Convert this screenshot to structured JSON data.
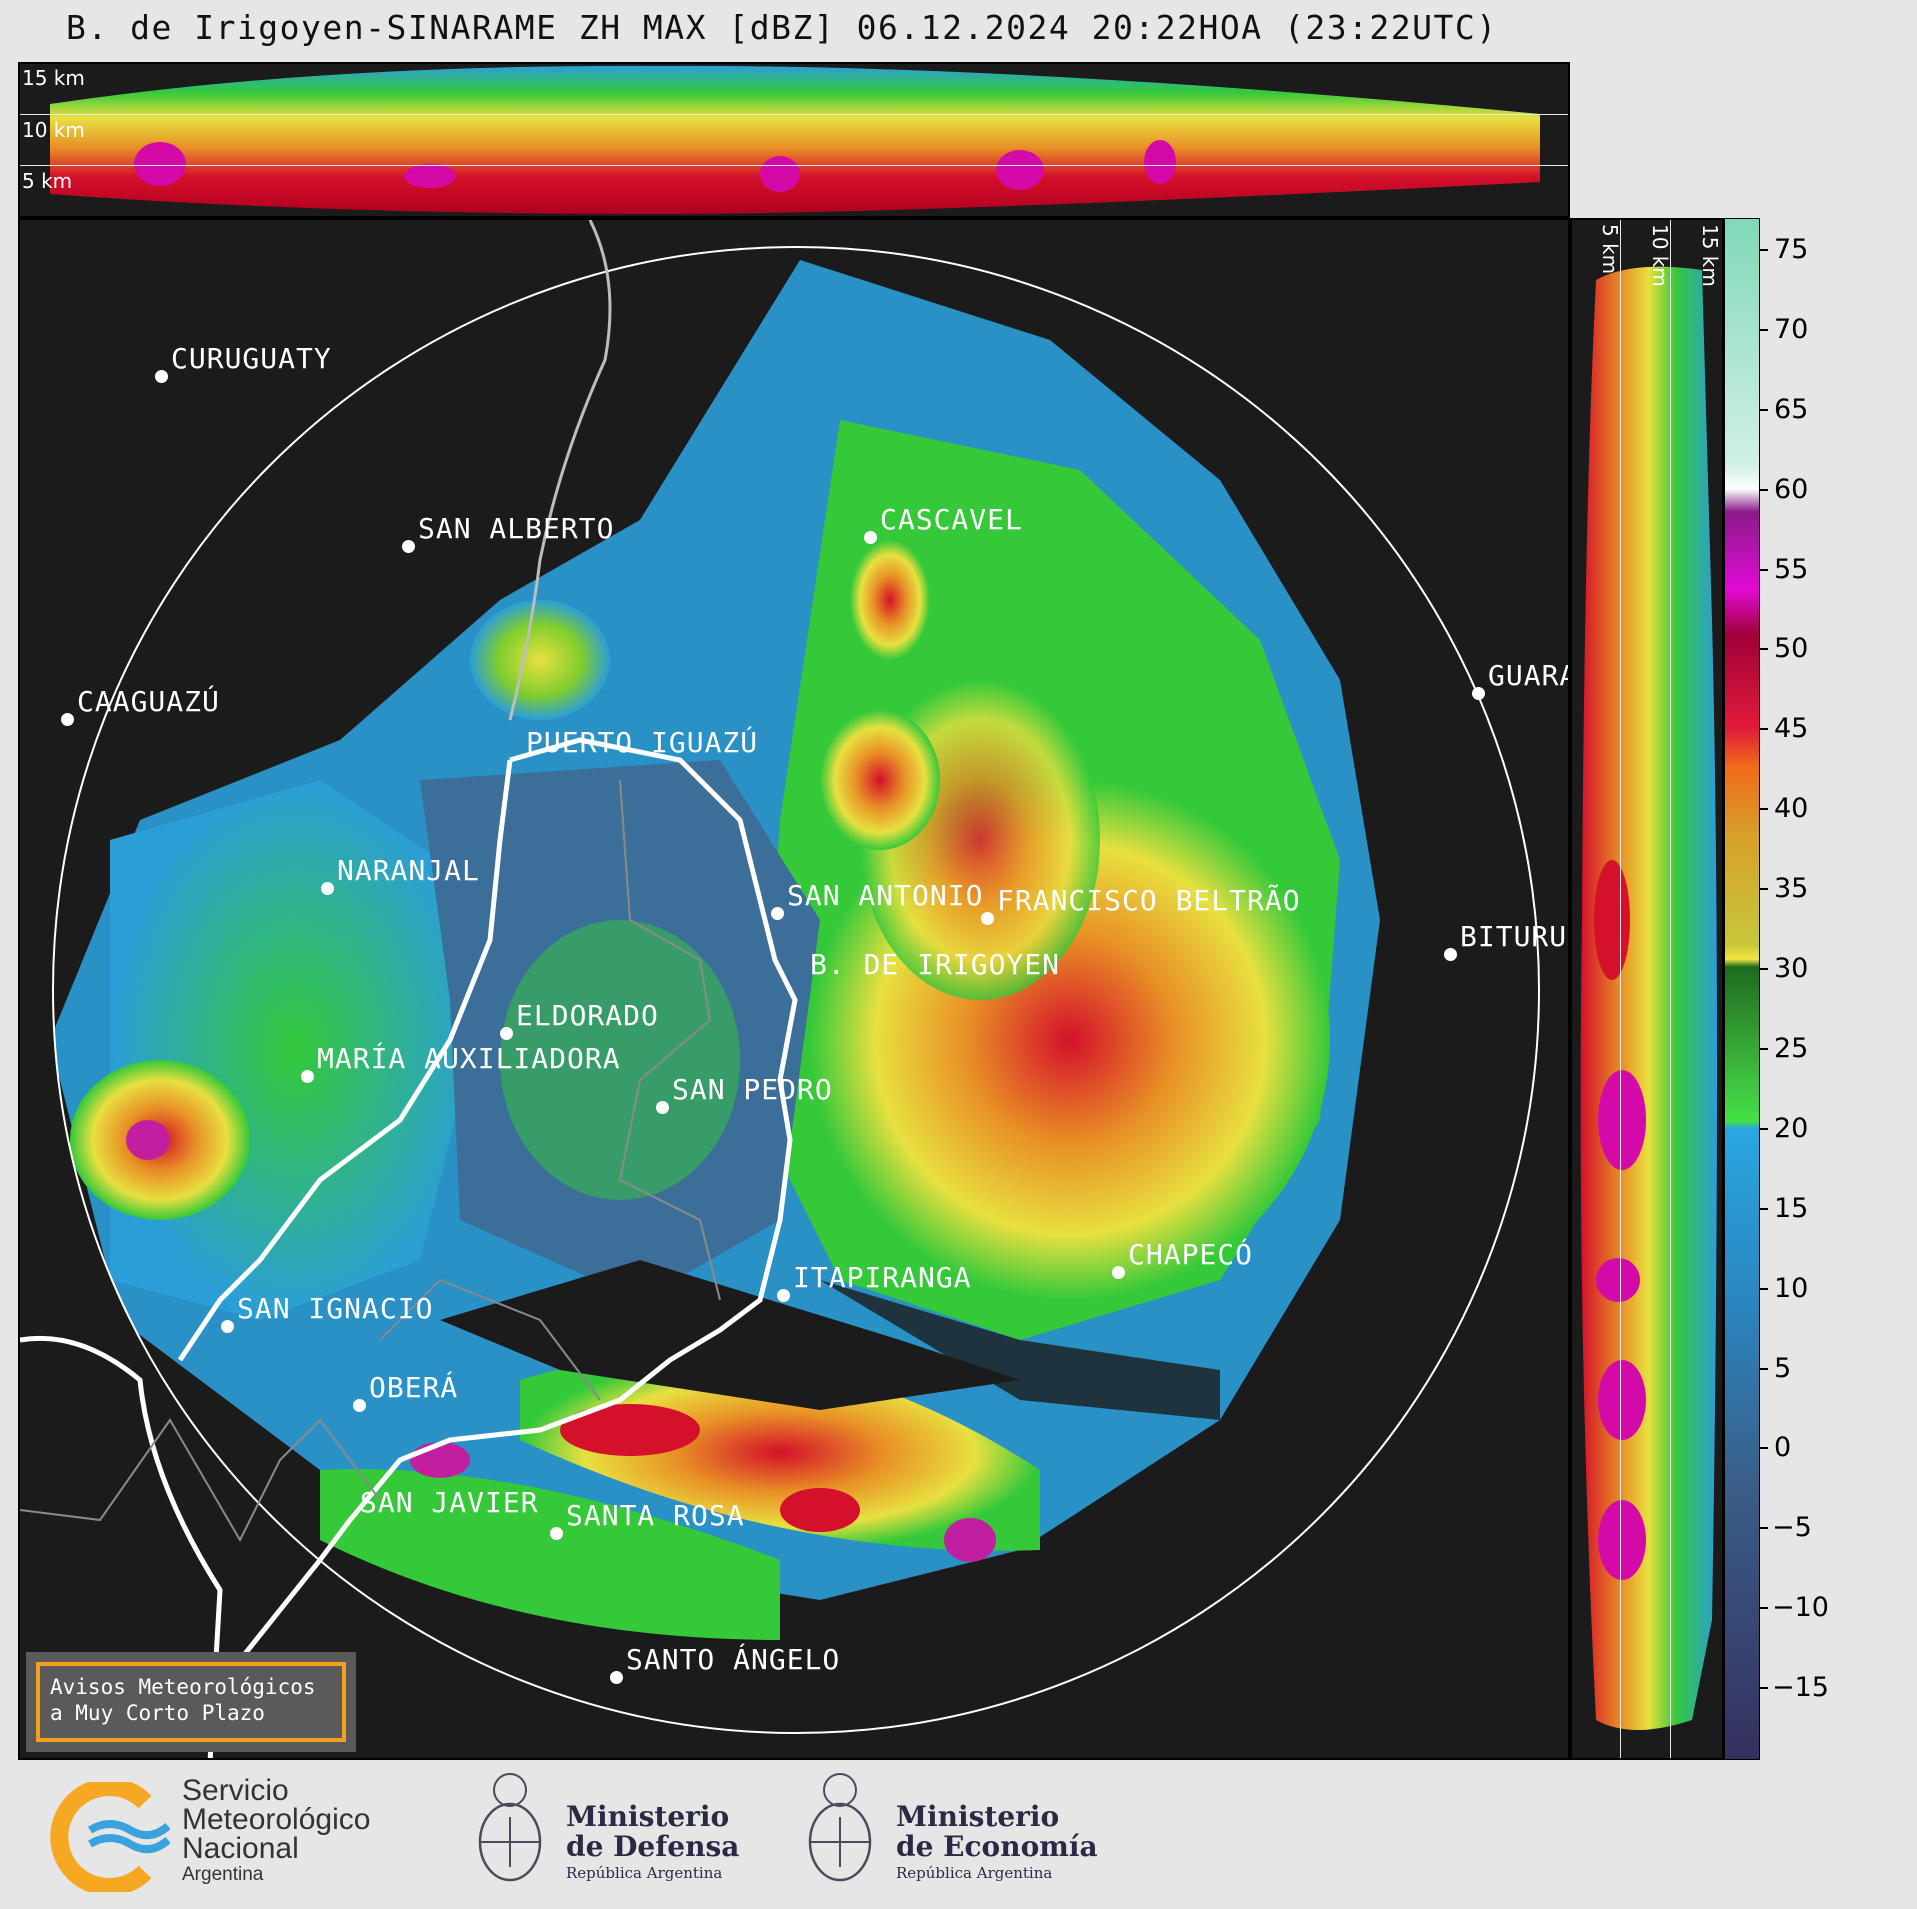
{
  "title": "B. de Irigoyen-SINARAME ZH MAX [dBZ] 06.12.2024 20:22HOA (23:22UTC)",
  "top_panel": {
    "height_labels": [
      "15 km",
      "10 km",
      "5 km"
    ]
  },
  "right_panel": {
    "height_labels": [
      "5 km",
      "10 km",
      "15 km"
    ]
  },
  "colorbar": {
    "unit": "dBZ",
    "ticks": [
      "75",
      "70",
      "65",
      "60",
      "55",
      "50",
      "45",
      "40",
      "35",
      "30",
      "25",
      "20",
      "15",
      "10",
      "5",
      "0",
      "−5",
      "−10",
      "−15"
    ],
    "range": [
      -19.5,
      77
    ],
    "colors": [
      {
        "from": 60,
        "to": 77,
        "hex": "#9bdcc3"
      },
      {
        "from": 58,
        "to": 60,
        "hex": "#ffffff"
      },
      {
        "from": 50,
        "to": 58,
        "hex": "#c21fa0"
      },
      {
        "from": 42,
        "to": 50,
        "hex": "#d4102a"
      },
      {
        "from": 35,
        "to": 42,
        "hex": "#e89026"
      },
      {
        "from": 30,
        "to": 35,
        "hex": "#e8e040"
      },
      {
        "from": 20,
        "to": 30,
        "hex": "#2f9e2f"
      },
      {
        "from": 10,
        "to": 20,
        "hex": "#2b9ed8"
      },
      {
        "from": -5,
        "to": 10,
        "hex": "#3b6e99"
      },
      {
        "from": -19.5,
        "to": -5,
        "hex": "#3a3a6a"
      }
    ]
  },
  "cities": [
    {
      "name": "CURUGUATY"
    },
    {
      "name": "SAN ALBERTO"
    },
    {
      "name": "CASCAVEL"
    },
    {
      "name": "CAAGUAZÚ"
    },
    {
      "name": "GUARA"
    },
    {
      "name": "PUERTO IGUAZÚ"
    },
    {
      "name": "NARANJAL"
    },
    {
      "name": "SAN ANTONIO"
    },
    {
      "name": "FRANCISCO BELTRÃO"
    },
    {
      "name": "BITURU"
    },
    {
      "name": "B. DE IRIGOYEN"
    },
    {
      "name": "ELDORADO"
    },
    {
      "name": "MARÍA AUXILIADORA"
    },
    {
      "name": "SAN PEDRO"
    },
    {
      "name": "CHAPECÓ"
    },
    {
      "name": "ITAPIRANGA"
    },
    {
      "name": "SAN IGNACIO"
    },
    {
      "name": "OBERÁ"
    },
    {
      "name": "SAN JAVIER"
    },
    {
      "name": "SANTA ROSA"
    },
    {
      "name": "SANTO ÁNGELO"
    }
  ],
  "notice": {
    "line1": "Avisos Meteorológicos",
    "line2": "a Muy Corto Plazo"
  },
  "logos": {
    "smn": {
      "line1": "Servicio",
      "line2": "Meteorológico",
      "line3": "Nacional",
      "line4": "Argentina"
    },
    "defensa": {
      "line1": "Ministerio",
      "line2": "de Defensa",
      "line3": "República Argentina"
    },
    "economia": {
      "line1": "Ministerio",
      "line2": "de Economía",
      "line3": "República Argentina"
    }
  },
  "accent_colors": {
    "background": "#1b1b1b",
    "smn_orange": "#f7a823",
    "smn_blue": "#3aa3dd",
    "notice_border": "#f2a01e"
  }
}
